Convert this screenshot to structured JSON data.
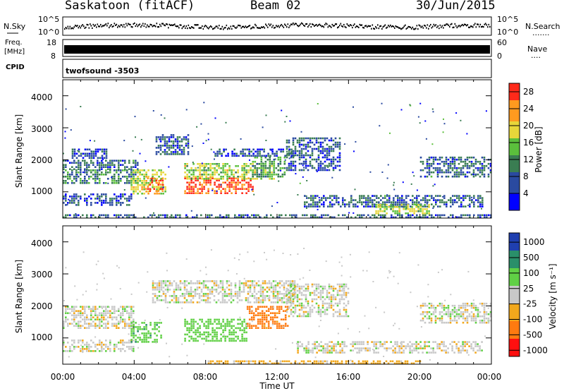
{
  "header": {
    "station": "Saskatoon (fitACF)",
    "beam": "Beam 02",
    "date": "30/Jun/2015"
  },
  "nsky_panel": {
    "left_label": "N.Sky",
    "right_label": "N.Search",
    "right_dots": ".......",
    "ticks": [
      "10^5",
      "10^0"
    ]
  },
  "freq_panel": {
    "left_label_1": "Freq.",
    "left_label_2": "[MHz]",
    "left_ticks": [
      "18",
      "8"
    ],
    "right_label": "Nave",
    "right_dots": "....",
    "right_ticks": [
      "60",
      "0"
    ]
  },
  "cpid_panel": {
    "label": "CPID",
    "value": "twofsound -3503"
  },
  "power_panel": {
    "ylabel": "Slant Range [km]",
    "yticks": [
      "4000",
      "3000",
      "2000",
      "1000"
    ],
    "colorbar_label": "Power [dB]",
    "colorbar_ticks": [
      "28",
      "24",
      "20",
      "16",
      "12",
      "8",
      "4"
    ]
  },
  "velocity_panel": {
    "ylabel": "Slant Range [km]",
    "yticks": [
      "4000",
      "3000",
      "2000",
      "1000"
    ],
    "colorbar_label": "Velocity [m s⁻¹]",
    "colorbar_ticks": [
      "1000",
      "500",
      "100",
      "25",
      "-25",
      "-100",
      "-500",
      "-1000"
    ]
  },
  "xaxis": {
    "ticks": [
      "00:00",
      "04:00",
      "08:00",
      "12:00",
      "16:00",
      "20:00",
      "00:00"
    ],
    "label": "Time UT"
  },
  "chart_data": {
    "type": "heatmap",
    "title": "Saskatoon (fitACF) Beam 02 30/Jun/2015",
    "xlabel": "Time UT",
    "ylabel": "Slant Range [km]",
    "xlim_hours": [
      0,
      24
    ],
    "ylim_km": [
      180,
      4500
    ],
    "power_colorbar": {
      "ticks": [
        4,
        8,
        12,
        16,
        20,
        24,
        28
      ],
      "range": [
        0,
        30
      ],
      "colors": [
        "#0000ff",
        "#2a4aa0",
        "#3a7d52",
        "#5bbf3c",
        "#e7d63a",
        "#ff9a1f",
        "#ff2a1a"
      ]
    },
    "velocity_colorbar": {
      "ticks": [
        1000,
        500,
        100,
        25,
        -25,
        -100,
        -500,
        -1000
      ],
      "colors": [
        "#1f3fb0",
        "#2a8f6a",
        "#60d045",
        "#c8c8c8",
        "#f2a81c",
        "#ff7a10",
        "#ff1010"
      ]
    },
    "power_regions": [
      {
        "t0": 0.0,
        "t1": 4.2,
        "r0": 1300,
        "r1": 1700,
        "level": 10
      },
      {
        "t0": 0.0,
        "t1": 4.2,
        "r0": 1700,
        "r1": 2000,
        "level": 8
      },
      {
        "t0": 0.0,
        "t1": 3.8,
        "r0": 600,
        "r1": 950,
        "level": 6
      },
      {
        "t0": 0.5,
        "t1": 2.5,
        "r0": 2050,
        "r1": 2350,
        "level": 6
      },
      {
        "t0": 3.8,
        "t1": 5.8,
        "r0": 950,
        "r1": 1700,
        "level": 18
      },
      {
        "t0": 4.6,
        "t1": 5.6,
        "r0": 1000,
        "r1": 1450,
        "level": 24
      },
      {
        "t0": 5.2,
        "t1": 7.0,
        "r0": 2200,
        "r1": 2800,
        "level": 7
      },
      {
        "t0": 6.8,
        "t1": 10.6,
        "r0": 950,
        "r1": 1450,
        "level": 27
      },
      {
        "t0": 6.8,
        "t1": 11.8,
        "r0": 1400,
        "r1": 1900,
        "level": 17
      },
      {
        "t0": 10.6,
        "t1": 12.4,
        "r0": 1500,
        "r1": 2100,
        "level": 12
      },
      {
        "t0": 8.5,
        "t1": 13.0,
        "r0": 2100,
        "r1": 2350,
        "level": 7
      },
      {
        "t0": 12.5,
        "t1": 15.5,
        "r0": 1650,
        "r1": 2700,
        "level": 7
      },
      {
        "t0": 13.5,
        "t1": 23.5,
        "r0": 550,
        "r1": 900,
        "level": 8
      },
      {
        "t0": 17.5,
        "t1": 20.5,
        "r0": 300,
        "r1": 620,
        "level": 17
      },
      {
        "t0": 20.0,
        "t1": 24.0,
        "r0": 1500,
        "r1": 2100,
        "level": 8
      },
      {
        "t0": 0.0,
        "t1": 24.0,
        "r0": 180,
        "r1": 300,
        "level": 8
      }
    ],
    "velocity_regions": [
      {
        "t0": 0.0,
        "t1": 4.0,
        "r0": 600,
        "r1": 950,
        "v": 0
      },
      {
        "t0": 0.0,
        "t1": 4.0,
        "r0": 1300,
        "r1": 2000,
        "v": 0
      },
      {
        "t0": 3.8,
        "t1": 5.5,
        "r0": 900,
        "r1": 1500,
        "v": 200
      },
      {
        "t0": 6.8,
        "t1": 10.3,
        "r0": 900,
        "r1": 1600,
        "v": 150
      },
      {
        "t0": 10.3,
        "t1": 12.6,
        "r0": 1300,
        "r1": 2000,
        "v": -300
      },
      {
        "t0": 5.0,
        "t1": 13.0,
        "r0": 2100,
        "r1": 2800,
        "v": 0
      },
      {
        "t0": 12.5,
        "t1": 16.0,
        "r0": 1700,
        "r1": 2700,
        "v": 0
      },
      {
        "t0": 13.0,
        "t1": 23.5,
        "r0": 550,
        "r1": 900,
        "v": 0
      },
      {
        "t0": 20.0,
        "t1": 24.0,
        "r0": 1450,
        "r1": 2100,
        "v": 0
      },
      {
        "t0": 8.0,
        "t1": 20.0,
        "r0": 180,
        "r1": 300,
        "v": -80
      }
    ]
  }
}
